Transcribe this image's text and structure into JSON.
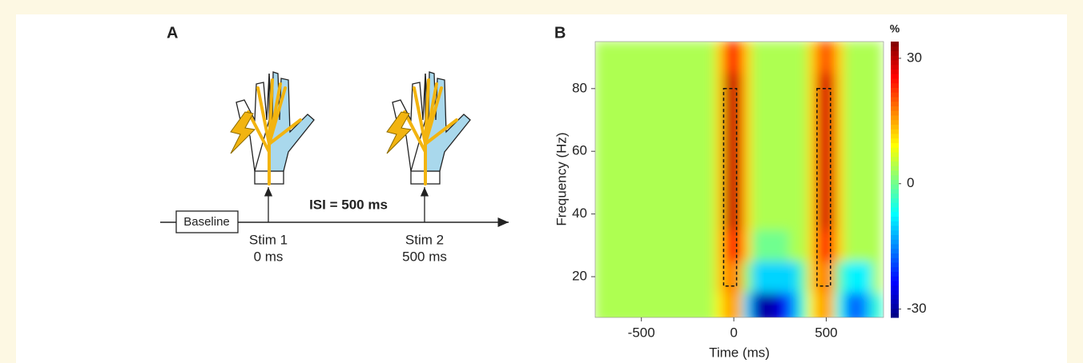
{
  "panel_a": {
    "label": "A",
    "baseline": "Baseline",
    "isi": "ISI = 500 ms",
    "stimuli": [
      {
        "name": "Stim 1",
        "time": "0 ms"
      },
      {
        "name": "Stim 2",
        "time": "500 ms"
      }
    ]
  },
  "chart_data": {
    "type": "heatmap",
    "panel_label": "B",
    "xlabel": "Time (ms)",
    "ylabel": "Frequency (Hz)",
    "colorbar_label": "%",
    "xlim": [
      -750,
      810
    ],
    "xticks": [
      -500,
      0,
      500
    ],
    "ylim": [
      7,
      95
    ],
    "yticks": [
      20,
      40,
      60,
      80
    ],
    "clim": [
      -32,
      34
    ],
    "cticks": [
      -30,
      0,
      30
    ],
    "colormap": "jet",
    "x": [
      -725,
      -675,
      -625,
      -575,
      -525,
      -475,
      -425,
      -375,
      -325,
      -275,
      -225,
      -175,
      -125,
      -75,
      -25,
      25,
      75,
      125,
      175,
      225,
      275,
      325,
      375,
      425,
      475,
      525,
      575,
      625,
      675,
      725,
      775
    ],
    "y": [
      10,
      20,
      30,
      40,
      50,
      60,
      70,
      80,
      90
    ],
    "z": [
      [
        4,
        4,
        4,
        4,
        4,
        4,
        4,
        4,
        4,
        4,
        4,
        4,
        4,
        10,
        16,
        14,
        -10,
        -28,
        -30,
        -28,
        -24,
        -14,
        -4,
        10,
        16,
        14,
        -6,
        -16,
        -18,
        -12,
        -4
      ],
      [
        4,
        4,
        4,
        4,
        4,
        4,
        4,
        4,
        4,
        4,
        4,
        4,
        4,
        12,
        18,
        16,
        2,
        -10,
        -10,
        -10,
        -10,
        -10,
        -2,
        12,
        18,
        16,
        -2,
        -8,
        -8,
        -8,
        4
      ],
      [
        4,
        4,
        4,
        4,
        4,
        4,
        4,
        4,
        4,
        4,
        4,
        4,
        4,
        12,
        24,
        24,
        12,
        0,
        0,
        0,
        0,
        4,
        4,
        12,
        24,
        22,
        12,
        4,
        4,
        4,
        4
      ],
      [
        4,
        4,
        4,
        4,
        4,
        4,
        4,
        4,
        4,
        4,
        4,
        4,
        4,
        12,
        30,
        28,
        12,
        4,
        4,
        4,
        4,
        4,
        4,
        12,
        28,
        28,
        12,
        4,
        4,
        4,
        4
      ],
      [
        4,
        4,
        4,
        4,
        4,
        4,
        4,
        4,
        4,
        4,
        4,
        4,
        4,
        12,
        30,
        28,
        12,
        4,
        4,
        4,
        4,
        4,
        4,
        12,
        28,
        28,
        12,
        4,
        4,
        4,
        4
      ],
      [
        4,
        4,
        4,
        4,
        4,
        4,
        4,
        4,
        4,
        4,
        4,
        4,
        4,
        12,
        30,
        28,
        12,
        4,
        4,
        4,
        4,
        4,
        4,
        12,
        28,
        28,
        12,
        4,
        4,
        4,
        4
      ],
      [
        4,
        4,
        4,
        4,
        4,
        4,
        4,
        4,
        4,
        4,
        4,
        4,
        4,
        12,
        30,
        28,
        12,
        4,
        4,
        4,
        4,
        4,
        4,
        12,
        28,
        28,
        12,
        4,
        4,
        4,
        4
      ],
      [
        4,
        4,
        4,
        4,
        4,
        4,
        4,
        4,
        4,
        4,
        4,
        4,
        4,
        12,
        30,
        28,
        12,
        4,
        4,
        4,
        4,
        4,
        4,
        12,
        28,
        28,
        12,
        4,
        4,
        4,
        4
      ],
      [
        4,
        4,
        4,
        4,
        4,
        4,
        4,
        4,
        4,
        4,
        4,
        4,
        4,
        12,
        24,
        22,
        12,
        4,
        4,
        4,
        4,
        4,
        4,
        12,
        20,
        20,
        12,
        4,
        4,
        4,
        4
      ]
    ],
    "rois": [
      {
        "x": [
          -55,
          15
        ],
        "y": [
          17,
          80
        ]
      },
      {
        "x": [
          450,
          523
        ],
        "y": [
          17,
          80
        ]
      }
    ]
  }
}
